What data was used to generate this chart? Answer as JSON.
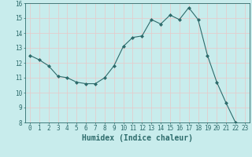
{
  "x": [
    0,
    1,
    2,
    3,
    4,
    5,
    6,
    7,
    8,
    9,
    10,
    11,
    12,
    13,
    14,
    15,
    16,
    17,
    18,
    19,
    20,
    21,
    22,
    23
  ],
  "y": [
    12.5,
    12.2,
    11.8,
    11.1,
    11.0,
    10.7,
    10.6,
    10.6,
    11.0,
    11.8,
    13.1,
    13.7,
    13.8,
    14.9,
    14.6,
    15.2,
    14.9,
    15.7,
    14.9,
    12.5,
    10.7,
    9.3,
    8.0,
    7.7
  ],
  "line_color": "#2d6b6b",
  "marker": "D",
  "marker_size": 2.0,
  "bg_color": "#c8ecec",
  "grid_color_major": "#e8c8c8",
  "grid_color_minor": "#ffffff",
  "xlabel": "Humidex (Indice chaleur)",
  "ylim": [
    8,
    16
  ],
  "xlim": [
    -0.5,
    23.5
  ],
  "yticks": [
    8,
    9,
    10,
    11,
    12,
    13,
    14,
    15,
    16
  ],
  "xticks": [
    0,
    1,
    2,
    3,
    4,
    5,
    6,
    7,
    8,
    9,
    10,
    11,
    12,
    13,
    14,
    15,
    16,
    17,
    18,
    19,
    20,
    21,
    22,
    23
  ],
  "tick_color": "#2d6b6b",
  "label_color": "#2d6b6b",
  "font_size": 5.5,
  "xlabel_fontsize": 7.0,
  "linewidth": 0.8
}
